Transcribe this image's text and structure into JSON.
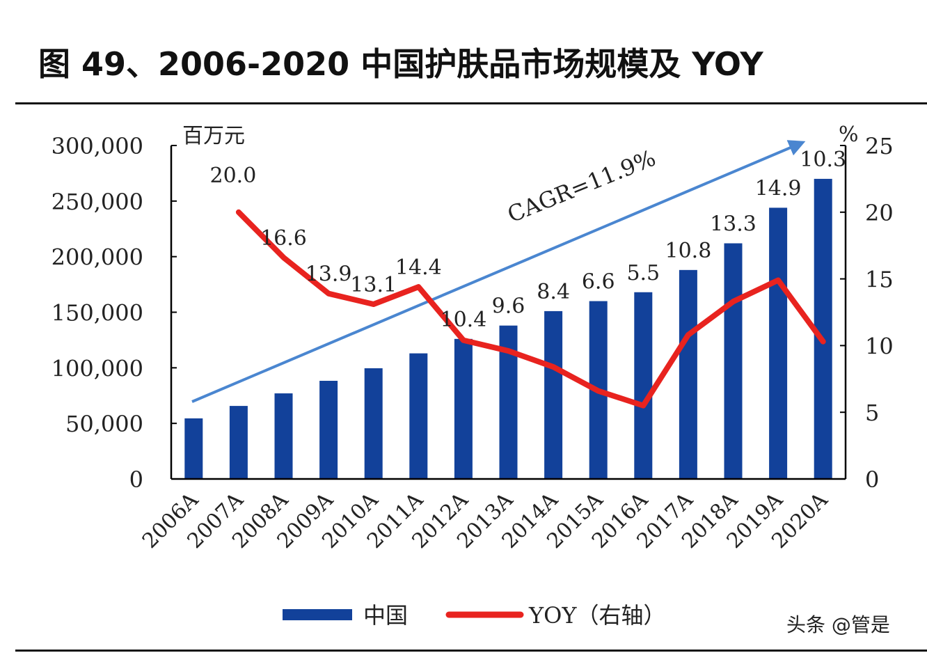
{
  "title": "图 49、2006-2020 中国护肤品市场规模及 YOY",
  "watermark": "头条 @管是",
  "chart_data": {
    "type": "bar+line",
    "categories": [
      "2006A",
      "2007A",
      "2008A",
      "2009A",
      "2010A",
      "2011A",
      "2012A",
      "2013A",
      "2014A",
      "2015A",
      "2016A",
      "2017A",
      "2018A",
      "2019A",
      "2020A"
    ],
    "series": [
      {
        "name": "中国",
        "type": "bar",
        "axis": "left",
        "color": "#12419a",
        "values": [
          54500,
          65700,
          77000,
          88300,
          99600,
          113000,
          126000,
          138000,
          151000,
          160000,
          168000,
          188000,
          212000,
          244000,
          270000
        ]
      },
      {
        "name": "YOY（右轴）",
        "type": "line",
        "axis": "right",
        "color": "#e8231f",
        "values": [
          null,
          20.0,
          16.6,
          13.9,
          13.1,
          14.4,
          10.4,
          9.6,
          8.4,
          6.6,
          5.5,
          10.8,
          13.3,
          14.9,
          10.3
        ],
        "labels": [
          "",
          "20.0",
          "16.6",
          "13.9",
          "13.1",
          "14.4",
          "10.4",
          "9.6",
          "8.4",
          "6.6",
          "5.5",
          "10.8",
          "13.3",
          "14.9",
          "10.3"
        ]
      }
    ],
    "ylabel_left": "百万元",
    "ylabel_right": "%",
    "ylim_left": [
      0,
      300000
    ],
    "ylim_right": [
      0,
      25
    ],
    "yticks_left": [
      "0",
      "50,000",
      "100,000",
      "150,000",
      "200,000",
      "250,000",
      "300,000"
    ],
    "yticks_right": [
      "0",
      "5",
      "10",
      "15",
      "20",
      "25"
    ],
    "annotation": "CAGR=11.9%",
    "arrow_color": "#4a86d0",
    "grid": false,
    "legend_position": "bottom"
  }
}
